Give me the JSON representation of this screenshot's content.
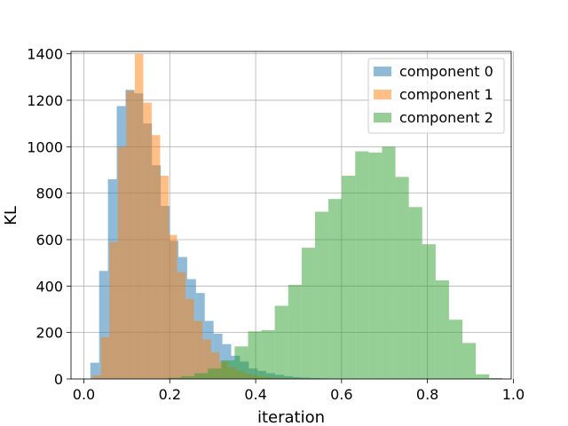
{
  "chart_data": {
    "type": "bar",
    "subtype": "histogram-overlay",
    "xlabel": "iteration",
    "ylabel": "KL",
    "xlim": [
      -0.03,
      0.995
    ],
    "ylim": [
      0,
      1410
    ],
    "xticks": [
      0.0,
      0.2,
      0.4,
      0.6,
      0.8,
      1.0
    ],
    "xtick_labels": [
      "0.0",
      "0.2",
      "0.4",
      "0.6",
      "0.8",
      "1.0"
    ],
    "yticks": [
      0,
      200,
      400,
      600,
      800,
      1000,
      1200,
      1400
    ],
    "ytick_labels": [
      "0",
      "200",
      "400",
      "600",
      "800",
      "1000",
      "1200",
      "1400"
    ],
    "grid": true,
    "legend_position": "top-right",
    "opacity": 0.5,
    "series": [
      {
        "name": "component 0",
        "color": "#1f77b4",
        "bin_edges": [
          0.015,
          0.0355,
          0.056,
          0.0765,
          0.097,
          0.1175,
          0.138,
          0.1585,
          0.179,
          0.1995,
          0.22,
          0.2405,
          0.261,
          0.2815,
          0.302,
          0.3225,
          0.343,
          0.3635,
          0.384,
          0.4045,
          0.425,
          0.4455,
          0.466,
          0.4865,
          0.507,
          0.5275,
          0.548,
          0.5685,
          0.589,
          0.6095,
          0.63
        ],
        "counts": [
          70,
          465,
          860,
          1175,
          1245,
          1230,
          1100,
          920,
          745,
          595,
          525,
          430,
          370,
          250,
          195,
          150,
          100,
          75,
          45,
          35,
          25,
          18,
          12,
          8,
          6,
          4,
          3,
          2,
          1,
          1
        ]
      },
      {
        "name": "component 1",
        "color": "#ff7f0e",
        "bin_edges": [
          0.02,
          0.0397,
          0.0594,
          0.0791,
          0.0988,
          0.1185,
          0.1382,
          0.1579,
          0.1776,
          0.1973,
          0.217,
          0.2367,
          0.2564,
          0.2761,
          0.2958,
          0.3155,
          0.3352,
          0.3549,
          0.3746,
          0.3943,
          0.414,
          0.4337,
          0.4534,
          0.4731,
          0.4928,
          0.5125,
          0.5322,
          0.5519,
          0.5716,
          0.5913,
          0.611
        ],
        "counts": [
          15,
          180,
          590,
          1000,
          1240,
          1400,
          1190,
          1050,
          875,
          620,
          460,
          345,
          250,
          170,
          115,
          75,
          50,
          35,
          22,
          14,
          9,
          6,
          4,
          3,
          2,
          1,
          1,
          1,
          0,
          1
        ]
      },
      {
        "name": "component 2",
        "color": "#2ca02c",
        "bin_edges": [
          0.195,
          0.2262,
          0.2574,
          0.2886,
          0.3198,
          0.351,
          0.3822,
          0.4134,
          0.4446,
          0.4758,
          0.507,
          0.5382,
          0.5694,
          0.6006,
          0.6318,
          0.663,
          0.6942,
          0.7254,
          0.7566,
          0.7878,
          0.819,
          0.8502,
          0.8814,
          0.9126,
          0.9438,
          0.975
        ],
        "counts": [
          5,
          12,
          25,
          45,
          80,
          140,
          205,
          210,
          315,
          405,
          565,
          720,
          775,
          875,
          980,
          975,
          1000,
          870,
          740,
          580,
          425,
          255,
          155,
          20,
          4
        ]
      }
    ]
  }
}
